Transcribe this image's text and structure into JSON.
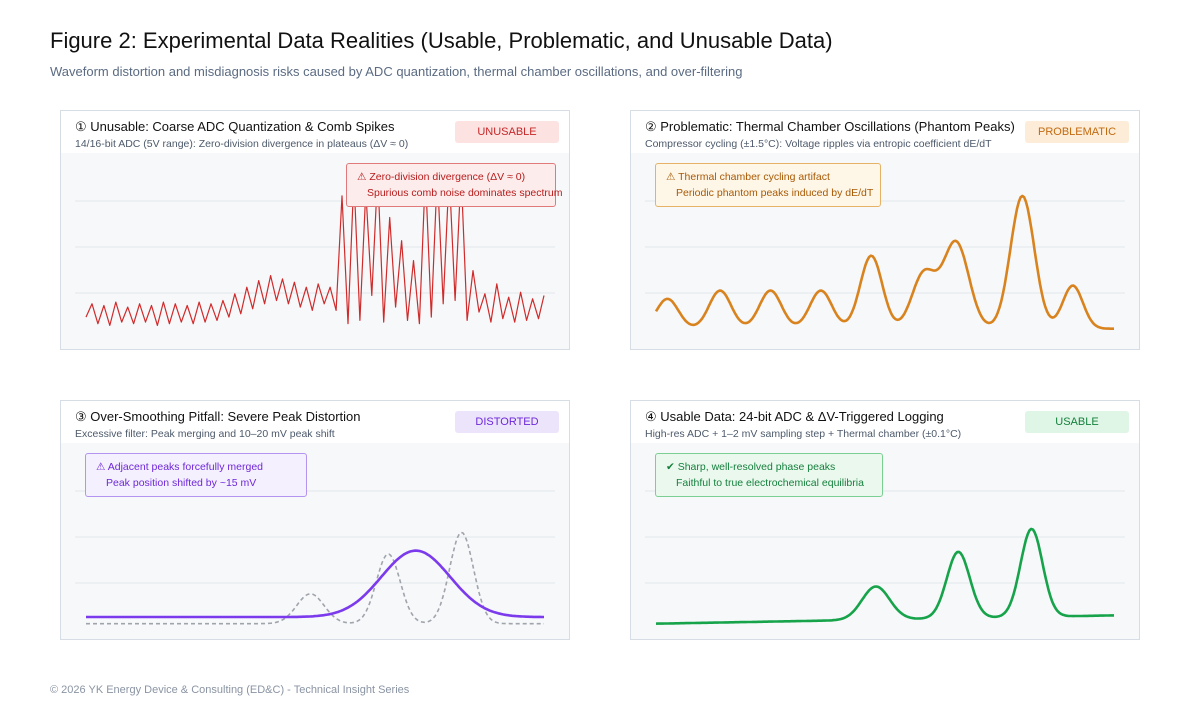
{
  "title": "Figure 2: Experimental Data Realities (Usable, Problematic, and Unusable Data)",
  "subtitle": "Waveform distortion and misdiagnosis risks caused by ADC quantization, thermal chamber oscillations, and over-filtering",
  "footer": "© 2026 YK Energy Device & Consulting (ED&C) - Technical Insight Series",
  "colors": {
    "unusable": "#d02b2b",
    "problematic": "#d9831f",
    "distorted": "#7c3aed",
    "usable": "#16a34a",
    "raw_dashed": "#a0a4ab",
    "grid": "#e3e7ec"
  },
  "panels": [
    {
      "title": "① Unusable: Coarse ADC Quantization & Comb Spikes",
      "subtitle": "14/16-bit ADC (5V range): Zero-division divergence in plateaus (ΔV ≈ 0)",
      "badge": "UNUSABLE",
      "callout_line1": "⚠ Zero-division divergence (ΔV ≈ 0)",
      "callout_line2": "Spurious comb noise dominates spectrum"
    },
    {
      "title": "② Problematic: Thermal Chamber Oscillations (Phantom Peaks)",
      "subtitle": "Compressor cycling (±1.5°C): Voltage ripples via entropic coefficient dE/dT",
      "badge": "PROBLEMATIC",
      "callout_line1": "⚠ Thermal chamber cycling artifact",
      "callout_line2": "Periodic phantom peaks induced by dE/dT"
    },
    {
      "title": "③ Over-Smoothing Pitfall: Severe Peak Distortion",
      "subtitle": "Excessive filter: Peak merging and 10–20 mV peak shift",
      "badge": "DISTORTED",
      "callout_line1": "⚠ Adjacent peaks forcefully merged",
      "callout_line2": "Peak position shifted by ~15 mV"
    },
    {
      "title": "④ Usable Data: 24-bit ADC & ΔV-Triggered Logging",
      "subtitle": "High-res ADC + 1–2 mV sampling step + Thermal chamber (±0.1°C)",
      "badge": "USABLE",
      "callout_line1": "✔ Sharp, well-resolved phase peaks",
      "callout_line2": "Faithful to true electrochemical equilibria"
    }
  ],
  "chart_data": [
    {
      "type": "line",
      "panel": "unusable",
      "xlim": [
        0,
        100
      ],
      "ylim": [
        0,
        10
      ],
      "grid": true,
      "series": [
        {
          "style": "solid",
          "x": [
            0,
            1.3,
            2.6,
            3.9,
            5.2,
            6.5,
            7.8,
            9.1,
            10.4,
            11.7,
            13,
            14.3,
            15.6,
            16.9,
            18.2,
            19.5,
            20.8,
            22.1,
            23.4,
            24.7,
            26,
            27.3,
            28.6,
            29.9,
            31.2,
            32.5,
            33.8,
            35.1,
            36.4,
            37.7,
            39,
            40.3,
            41.6,
            42.9,
            44.2,
            45.5,
            46.8,
            48.1,
            49.4,
            50.7,
            52,
            53.3,
            54.6,
            55.9,
            57.2,
            58.5,
            59.8,
            61.1,
            62.4,
            63.7,
            65,
            66.3,
            67.6,
            68.9,
            70.2,
            71.5,
            72.8,
            74.1,
            75.4,
            76.7,
            78,
            79.3,
            80.6,
            81.9,
            83.2,
            84.5,
            85.8,
            87.1,
            88.4,
            89.7,
            91,
            92.3,
            93.6,
            94.9,
            96.2,
            97.5,
            98.8,
            100
          ],
          "values": [
            1.2,
            2.0,
            0.8,
            1.9,
            0.7,
            2.1,
            0.9,
            1.8,
            0.8,
            2.0,
            0.9,
            1.9,
            0.7,
            2.1,
            0.8,
            2.0,
            0.9,
            1.9,
            0.8,
            2.1,
            0.9,
            2.0,
            1.0,
            2.2,
            1.2,
            2.6,
            1.4,
            3.0,
            1.7,
            3.4,
            2.0,
            3.7,
            2.2,
            3.5,
            2.0,
            3.3,
            1.8,
            3.0,
            1.6,
            3.2,
            2.0,
            3.0,
            1.6,
            8.5,
            0.8,
            9.6,
            1.0,
            8.8,
            2.5,
            9.9,
            0.9,
            7.2,
            1.8,
            5.8,
            1.0,
            4.6,
            0.8,
            9.9,
            1.2,
            9.9,
            2.0,
            9.9,
            2.2,
            9.9,
            1.0,
            4.0,
            1.5,
            2.6,
            0.9,
            3.2,
            1.1,
            2.4,
            0.9,
            2.7,
            1.0,
            2.3,
            1.1,
            2.5
          ]
        }
      ]
    },
    {
      "type": "line",
      "panel": "problematic",
      "xlim": [
        0,
        100
      ],
      "ylim": [
        0,
        10
      ],
      "grid": true,
      "series": [
        {
          "style": "solid",
          "peaks": [
            {
              "x": 2.5,
              "height": 1.8,
              "width": 2.4
            },
            {
              "x": 14,
              "height": 2.3,
              "width": 2.4
            },
            {
              "x": 25,
              "height": 2.3,
              "width": 2.4
            },
            {
              "x": 36,
              "height": 2.3,
              "width": 2.4
            },
            {
              "x": 47,
              "height": 4.4,
              "width": 2.4
            },
            {
              "x": 58.5,
              "height": 3.3,
              "width": 2.6
            },
            {
              "x": 65.5,
              "height": 5.2,
              "width": 2.8
            },
            {
              "x": 80,
              "height": 8.0,
              "width": 2.6
            },
            {
              "x": 91,
              "height": 2.6,
              "width": 2.2
            }
          ],
          "baseline": 0.5
        }
      ]
    },
    {
      "type": "line",
      "panel": "distorted",
      "xlim": [
        0,
        100
      ],
      "ylim": [
        0,
        10
      ],
      "grid": true,
      "series": [
        {
          "style": "dashed",
          "peaks": [
            {
              "x": 49,
              "height": 1.8,
              "width": 3.0
            },
            {
              "x": 66,
              "height": 4.2,
              "width": 2.6
            },
            {
              "x": 82,
              "height": 5.5,
              "width": 2.6
            }
          ],
          "baseline": 0.2
        },
        {
          "style": "solid",
          "peaks": [
            {
              "x": 72,
              "height": 4.0,
              "width": 7.5
            }
          ],
          "baseline": 0.6
        }
      ]
    },
    {
      "type": "line",
      "panel": "usable",
      "xlim": [
        0,
        100
      ],
      "ylim": [
        0,
        10
      ],
      "grid": true,
      "series": [
        {
          "style": "solid",
          "peaks": [
            {
              "x": 48,
              "height": 2.0,
              "width": 3.0
            },
            {
              "x": 66,
              "height": 4.0,
              "width": 2.5
            },
            {
              "x": 82,
              "height": 5.3,
              "width": 2.4
            }
          ],
          "baseline": 0.2,
          "drift": 0.5
        }
      ]
    }
  ]
}
